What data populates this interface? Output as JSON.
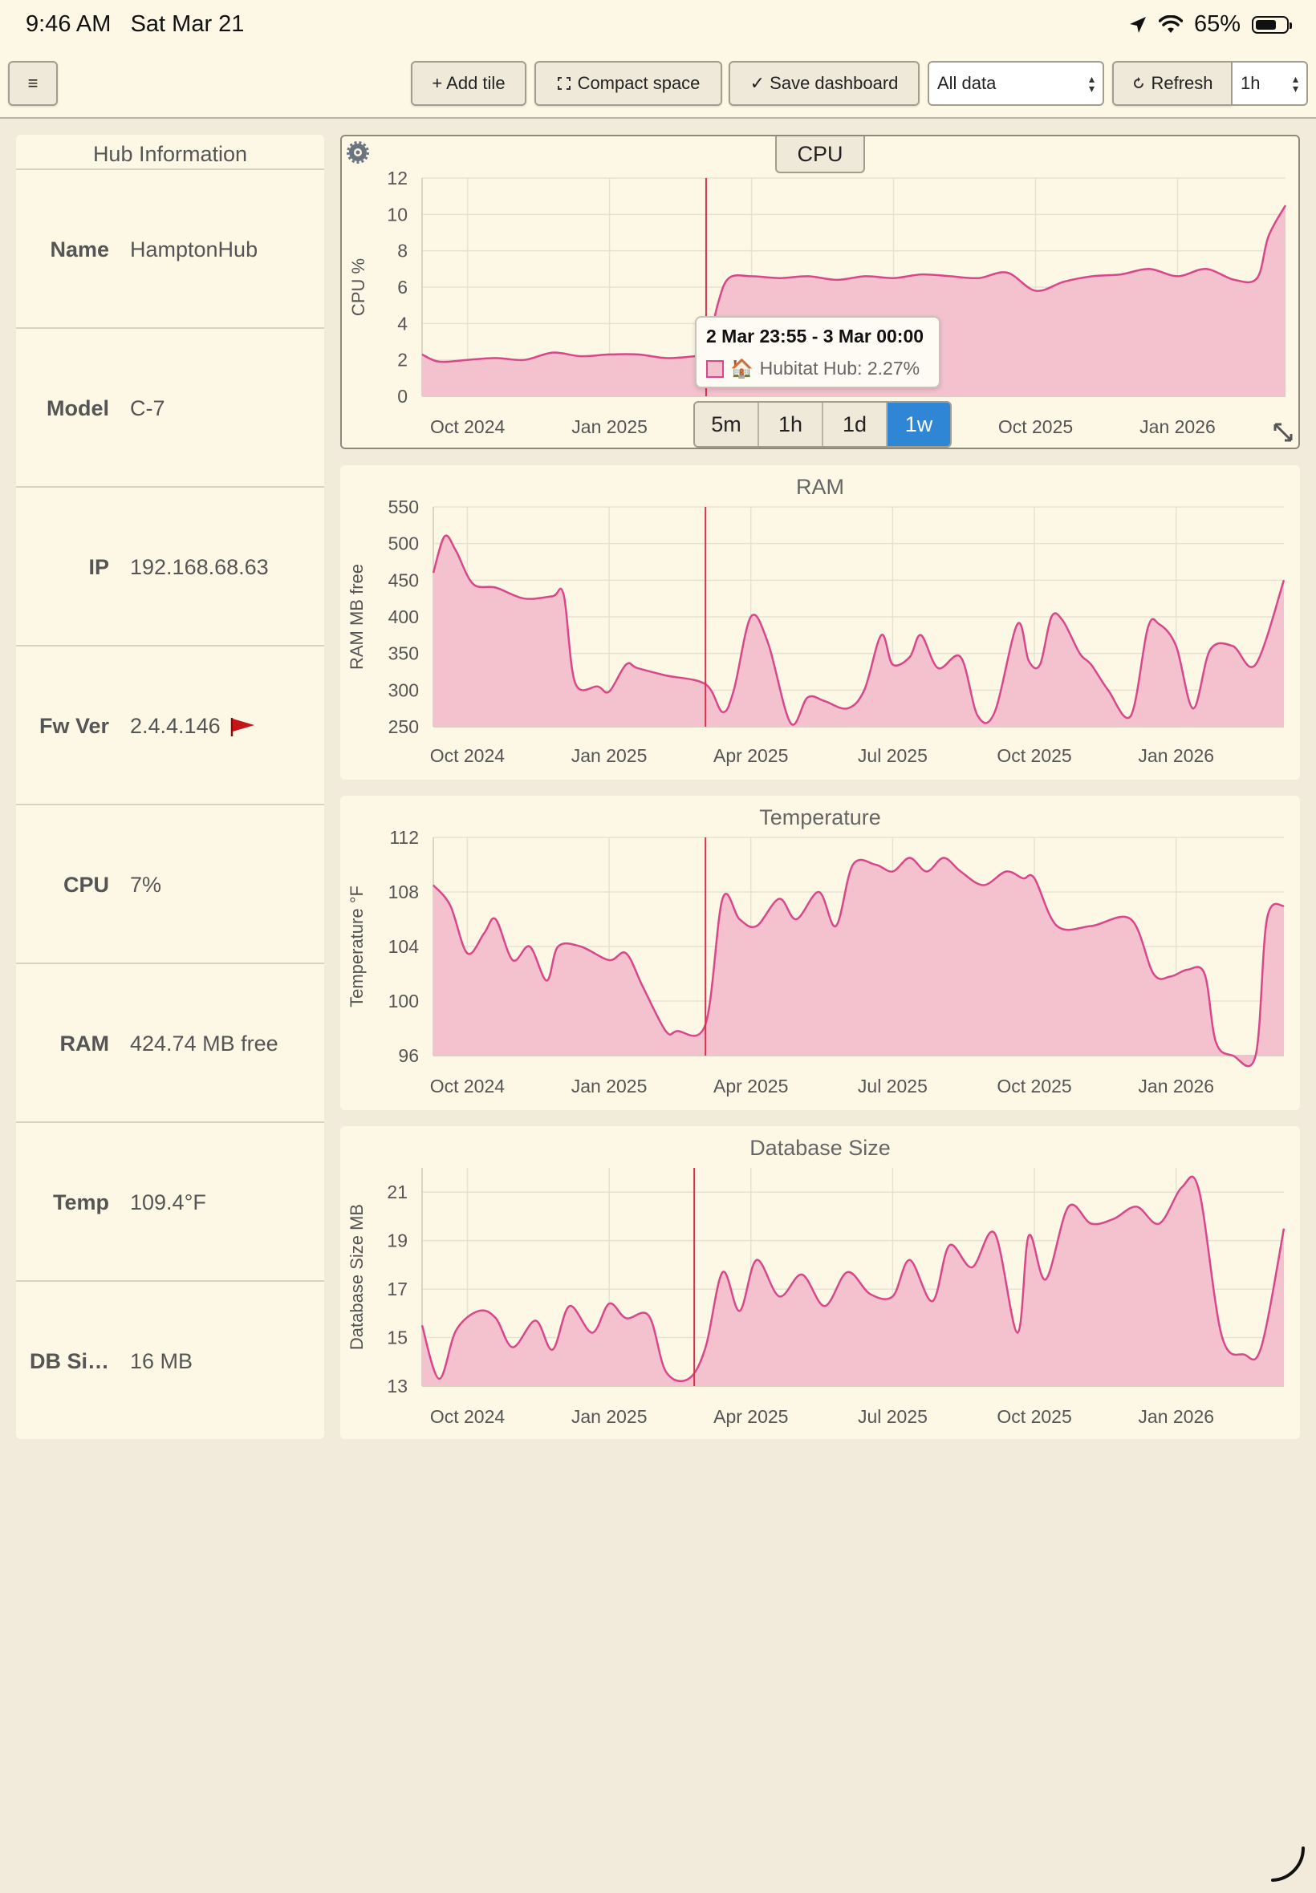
{
  "status_bar": {
    "time": "9:46 AM",
    "date": "Sat Mar 21",
    "battery": "65%",
    "battery_level": 0.65
  },
  "toolbar": {
    "menu_label": "≡",
    "add_tile_label": "+ Add tile",
    "compact_space_label": "Compact space",
    "save_dashboard_label": "✓ Save dashboard",
    "data_select_value": "All data",
    "refresh_label": "Refresh",
    "refresh_interval_value": "1h"
  },
  "hub_info": {
    "title": "Hub Information",
    "rows": [
      {
        "key": "Name",
        "value": "HamptonHub"
      },
      {
        "key": "Model",
        "value": "C-7"
      },
      {
        "key": "IP",
        "value": "192.168.68.63"
      },
      {
        "key": "Fw Ver",
        "value": "2.4.4.146"
      },
      {
        "key": "CPU",
        "value": "7%"
      },
      {
        "key": "RAM",
        "value": "424.74 MB free"
      },
      {
        "key": "Temp",
        "value": "109.4°F"
      },
      {
        "key": "DB Si…",
        "value": "16 MB"
      }
    ]
  },
  "range_buttons": [
    "5m",
    "1h",
    "1d",
    "1w"
  ],
  "range_selected": "1w",
  "tooltip": {
    "title": "2 Mar 23:55 - 3 Mar 00:00",
    "house_icon": "🏠",
    "label": "Hubitat Hub: 2.27%"
  },
  "colors": {
    "series_line": "#d9478a",
    "series_fill": "#f4c2cf",
    "cursor_line": "#d9304a",
    "active_range": "#2e86d4"
  },
  "chart_data": [
    {
      "type": "area",
      "title": "CPU",
      "ylabel": "CPU %",
      "ylim": [
        0,
        12
      ],
      "yticks": [
        0,
        2,
        4,
        6,
        8,
        10,
        12
      ],
      "xlim": [
        2024.67,
        2026.19
      ],
      "xticks": [
        {
          "label": "Oct 2024",
          "x": 2024.75
        },
        {
          "label": "Jan 2025",
          "x": 2025.0
        },
        {
          "label": "Apr 2025",
          "x": 2025.25,
          "hidden": true
        },
        {
          "label": "Jul 2025",
          "x": 2025.5,
          "hidden": true
        },
        {
          "label": "Oct 2025",
          "x": 2025.75
        },
        {
          "label": "Jan 2026",
          "x": 2026.0
        }
      ],
      "cursor_x": 2025.17,
      "series": [
        {
          "name": "Hubitat Hub",
          "x": [
            2024.67,
            2024.7,
            2024.75,
            2024.8,
            2024.85,
            2024.9,
            2024.95,
            2025.0,
            2025.05,
            2025.1,
            2025.15,
            2025.17,
            2025.19,
            2025.21,
            2025.25,
            2025.3,
            2025.35,
            2025.4,
            2025.45,
            2025.5,
            2025.55,
            2025.6,
            2025.65,
            2025.7,
            2025.75,
            2025.8,
            2025.85,
            2025.9,
            2025.95,
            2026.0,
            2026.05,
            2026.1,
            2026.14,
            2026.16,
            2026.19
          ],
          "y": [
            2.3,
            1.9,
            2.0,
            2.1,
            2.0,
            2.4,
            2.2,
            2.3,
            2.3,
            2.1,
            2.2,
            2.27,
            5.0,
            6.5,
            6.6,
            6.5,
            6.6,
            6.4,
            6.6,
            6.5,
            6.7,
            6.6,
            6.5,
            6.8,
            5.8,
            6.3,
            6.6,
            6.7,
            7.0,
            6.6,
            7.0,
            6.4,
            6.5,
            8.8,
            10.5
          ]
        }
      ]
    },
    {
      "type": "area",
      "title": "RAM",
      "ylabel": "RAM MB free",
      "ylim": [
        250,
        550
      ],
      "yticks": [
        250,
        300,
        350,
        400,
        450,
        500,
        550
      ],
      "xlim": [
        2024.69,
        2026.19
      ],
      "xticks": [
        {
          "label": "Oct 2024",
          "x": 2024.75
        },
        {
          "label": "Jan 2025",
          "x": 2025.0
        },
        {
          "label": "Apr 2025",
          "x": 2025.25
        },
        {
          "label": "Jul 2025",
          "x": 2025.5
        },
        {
          "label": "Oct 2025",
          "x": 2025.75
        },
        {
          "label": "Jan 2026",
          "x": 2026.0
        }
      ],
      "cursor_x": 2025.17,
      "series": [
        {
          "name": "Hubitat Hub",
          "x": [
            2024.69,
            2024.71,
            2024.73,
            2024.76,
            2024.8,
            2024.85,
            2024.9,
            2024.92,
            2024.94,
            2024.98,
            2025.0,
            2025.03,
            2025.05,
            2025.1,
            2025.17,
            2025.2,
            2025.22,
            2025.25,
            2025.28,
            2025.32,
            2025.35,
            2025.38,
            2025.42,
            2025.45,
            2025.48,
            2025.5,
            2025.53,
            2025.55,
            2025.58,
            2025.62,
            2025.65,
            2025.68,
            2025.72,
            2025.74,
            2025.76,
            2025.78,
            2025.8,
            2025.83,
            2025.85,
            2025.88,
            2025.92,
            2025.95,
            2025.97,
            2026.0,
            2026.03,
            2026.06,
            2026.1,
            2026.14,
            2026.19
          ],
          "y": [
            460,
            510,
            490,
            445,
            440,
            425,
            428,
            430,
            310,
            305,
            298,
            335,
            330,
            320,
            308,
            270,
            300,
            400,
            365,
            255,
            290,
            285,
            275,
            300,
            375,
            335,
            345,
            375,
            330,
            345,
            265,
            270,
            390,
            340,
            335,
            400,
            395,
            350,
            335,
            300,
            265,
            385,
            390,
            360,
            275,
            355,
            360,
            335,
            450
          ]
        }
      ]
    },
    {
      "type": "area",
      "title": "Temperature",
      "ylabel": "Temperature °F",
      "ylim": [
        96,
        112
      ],
      "yticks": [
        96,
        100,
        104,
        108,
        112
      ],
      "xlim": [
        2024.69,
        2026.19
      ],
      "xticks": [
        {
          "label": "Oct 2024",
          "x": 2024.75
        },
        {
          "label": "Jan 2025",
          "x": 2025.0
        },
        {
          "label": "Apr 2025",
          "x": 2025.25
        },
        {
          "label": "Jul 2025",
          "x": 2025.5
        },
        {
          "label": "Oct 2025",
          "x": 2025.75
        },
        {
          "label": "Jan 2026",
          "x": 2026.0
        }
      ],
      "cursor_x": 2025.17,
      "series": [
        {
          "name": "Hubitat Hub",
          "x": [
            2024.69,
            2024.72,
            2024.75,
            2024.78,
            2024.8,
            2024.83,
            2024.86,
            2024.89,
            2024.91,
            2024.95,
            2025.0,
            2025.03,
            2025.06,
            2025.1,
            2025.12,
            2025.17,
            2025.2,
            2025.23,
            2025.26,
            2025.3,
            2025.33,
            2025.37,
            2025.4,
            2025.43,
            2025.47,
            2025.5,
            2025.53,
            2025.56,
            2025.59,
            2025.62,
            2025.66,
            2025.7,
            2025.73,
            2025.75,
            2025.79,
            2025.85,
            2025.92,
            2025.96,
            2025.99,
            2026.02,
            2026.05,
            2026.07,
            2026.1,
            2026.14,
            2026.16,
            2026.19
          ],
          "y": [
            108.5,
            107,
            103.5,
            105,
            106,
            103,
            104,
            101.5,
            104,
            104,
            103,
            103.5,
            101,
            97.8,
            97.8,
            98.3,
            107.5,
            106,
            105.5,
            107.5,
            106,
            108,
            105.5,
            110,
            110,
            109.5,
            110.5,
            109.5,
            110.5,
            109.5,
            108.5,
            109.5,
            109,
            109,
            105.5,
            105.5,
            106,
            102,
            101.8,
            102.3,
            102,
            97,
            96,
            96,
            106,
            107
          ]
        }
      ]
    },
    {
      "type": "area",
      "title": "Database Size",
      "ylabel": "Database Size MB",
      "ylim": [
        13,
        22
      ],
      "yticks": [
        13,
        15,
        17,
        19,
        21
      ],
      "xlim": [
        2024.67,
        2026.19
      ],
      "xticks": [
        {
          "label": "Oct 2024",
          "x": 2024.75
        },
        {
          "label": "Jan 2025",
          "x": 2025.0
        },
        {
          "label": "Apr 2025",
          "x": 2025.25
        },
        {
          "label": "Jul 2025",
          "x": 2025.5
        },
        {
          "label": "Oct 2025",
          "x": 2025.75
        },
        {
          "label": "Jan 2026",
          "x": 2026.0
        }
      ],
      "cursor_x": 2025.15,
      "series": [
        {
          "name": "Hubitat Hub",
          "x": [
            2024.67,
            2024.7,
            2024.73,
            2024.77,
            2024.8,
            2024.83,
            2024.87,
            2024.9,
            2024.93,
            2024.97,
            2025.0,
            2025.03,
            2025.07,
            2025.1,
            2025.14,
            2025.17,
            2025.2,
            2025.23,
            2025.26,
            2025.3,
            2025.34,
            2025.38,
            2025.42,
            2025.46,
            2025.5,
            2025.53,
            2025.57,
            2025.6,
            2025.64,
            2025.68,
            2025.72,
            2025.74,
            2025.77,
            2025.81,
            2025.85,
            2025.89,
            2025.93,
            2025.97,
            2026.01,
            2026.04,
            2026.08,
            2026.12,
            2026.15,
            2026.19
          ],
          "y": [
            15.5,
            13.3,
            15.3,
            16.1,
            15.8,
            14.6,
            15.7,
            14.5,
            16.3,
            15.2,
            16.4,
            15.8,
            15.9,
            13.6,
            13.3,
            14.6,
            17.7,
            16.1,
            18.2,
            16.7,
            17.6,
            16.3,
            17.7,
            16.8,
            16.7,
            18.2,
            16.5,
            18.8,
            17.9,
            19.3,
            15.2,
            19.2,
            17.4,
            20.4,
            19.7,
            19.9,
            20.4,
            19.7,
            21.2,
            21.1,
            15.1,
            14.3,
            14.6,
            19.5
          ]
        }
      ]
    }
  ]
}
